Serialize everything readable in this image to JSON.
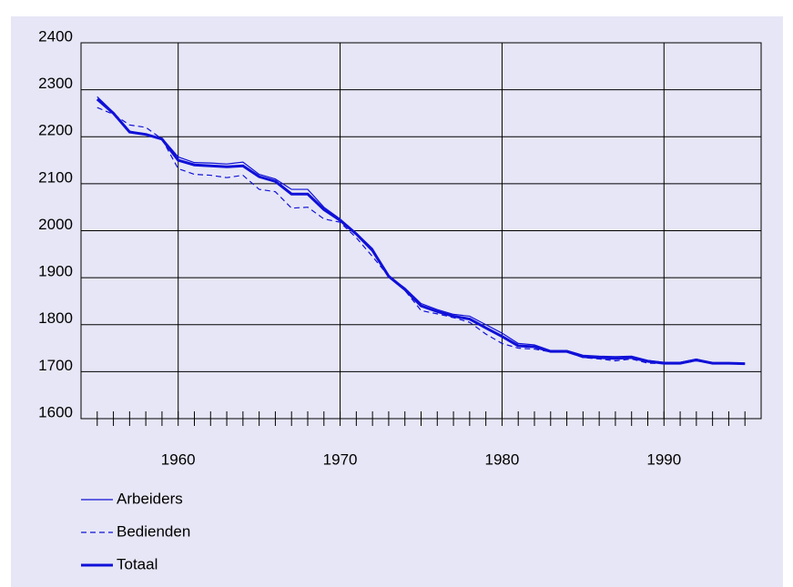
{
  "chart_data": {
    "type": "line",
    "x": [
      1955,
      1956,
      1957,
      1958,
      1959,
      1960,
      1961,
      1962,
      1963,
      1964,
      1965,
      1966,
      1967,
      1968,
      1969,
      1970,
      1971,
      1972,
      1973,
      1974,
      1975,
      1976,
      1977,
      1978,
      1979,
      1980,
      1981,
      1982,
      1983,
      1984,
      1985,
      1986,
      1987,
      1988,
      1989,
      1990,
      1991,
      1992,
      1993,
      1994,
      1995
    ],
    "series": [
      {
        "name": "Arbeiders",
        "color": "#1010d8",
        "width": 1.2,
        "dash": "none",
        "values": [
          2285,
          2252,
          2212,
          2205,
          2197,
          2157,
          2145,
          2144,
          2142,
          2146,
          2120,
          2110,
          2088,
          2088,
          2050,
          2025,
          1995,
          1962,
          1903,
          1878,
          1845,
          1832,
          1822,
          1818,
          1800,
          1782,
          1760,
          1757,
          1745,
          1745,
          1735,
          1733,
          1732,
          1733,
          1724,
          1720,
          1720,
          1727,
          1718,
          1718,
          1718
        ]
      },
      {
        "name": "Bedienden",
        "color": "#1010d8",
        "width": 1.2,
        "dash": "6,4",
        "values": [
          2262,
          2248,
          2225,
          2220,
          2195,
          2132,
          2120,
          2118,
          2113,
          2118,
          2088,
          2083,
          2048,
          2050,
          2025,
          2018,
          1985,
          1945,
          1903,
          1873,
          1830,
          1823,
          1815,
          1805,
          1780,
          1760,
          1750,
          1748,
          1742,
          1742,
          1730,
          1727,
          1723,
          1727,
          1718,
          1717,
          1717,
          1723,
          1717,
          1717,
          1716
        ]
      },
      {
        "name": "Totaal",
        "color": "#1010d8",
        "width": 3,
        "dash": "none",
        "values": [
          2280,
          2250,
          2210,
          2205,
          2195,
          2150,
          2140,
          2138,
          2136,
          2138,
          2115,
          2105,
          2078,
          2078,
          2045,
          2022,
          1993,
          1958,
          1903,
          1875,
          1840,
          1828,
          1818,
          1812,
          1793,
          1775,
          1755,
          1753,
          1743,
          1743,
          1732,
          1730,
          1728,
          1730,
          1722,
          1718,
          1718,
          1725,
          1718,
          1718,
          1717
        ]
      }
    ],
    "xlim": [
      1954,
      1996
    ],
    "xticks": [
      1960,
      1970,
      1980,
      1990
    ],
    "ylim": [
      1600,
      2400
    ],
    "yticks": [
      1600,
      1700,
      1800,
      1900,
      2000,
      2100,
      2200,
      2300,
      2400
    ],
    "grid": true
  }
}
